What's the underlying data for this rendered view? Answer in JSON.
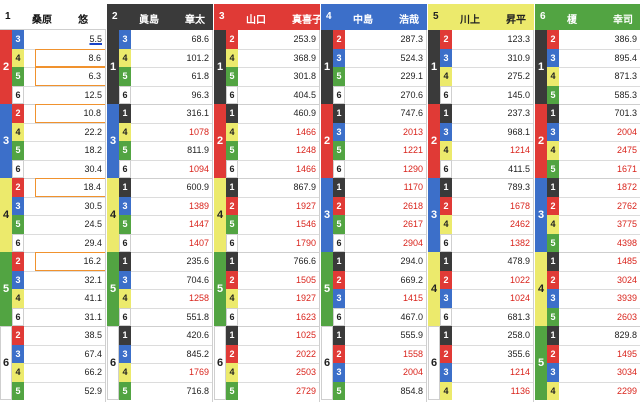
{
  "colors": {
    "c1": "#3a3a3a",
    "c2": "#e03a36",
    "c3": "#3c6fc9",
    "c4": "#ecea6c",
    "c5": "#52a442",
    "c6": "#ffffff"
  },
  "players": [
    {
      "num": "1",
      "last": "桑原",
      "first": "悠"
    },
    {
      "num": "2",
      "last": "眞島",
      "first": "章太"
    },
    {
      "num": "3",
      "last": "山口",
      "first": "真喜子"
    },
    {
      "num": "4",
      "last": "中島",
      "first": "浩哉"
    },
    {
      "num": "5",
      "last": "川上",
      "first": "昇平"
    },
    {
      "num": "6",
      "last": "榎",
      "first": "幸司"
    }
  ],
  "columns": [
    {
      "blocks": [
        {
          "second": "2",
          "rows": [
            {
              "third": "3",
              "odds": "5.5"
            },
            {
              "third": "4",
              "odds": "8.6"
            },
            {
              "third": "5",
              "odds": "6.3"
            },
            {
              "third": "6",
              "odds": "12.5"
            }
          ]
        },
        {
          "second": "3",
          "rows": [
            {
              "third": "2",
              "odds": "10.8"
            },
            {
              "third": "4",
              "odds": "22.2"
            },
            {
              "third": "5",
              "odds": "18.2"
            },
            {
              "third": "6",
              "odds": "30.4"
            }
          ]
        },
        {
          "second": "4",
          "rows": [
            {
              "third": "2",
              "odds": "18.4"
            },
            {
              "third": "3",
              "odds": "30.5"
            },
            {
              "third": "5",
              "odds": "24.5"
            },
            {
              "third": "6",
              "odds": "29.4"
            }
          ]
        },
        {
          "second": "5",
          "rows": [
            {
              "third": "2",
              "odds": "16.2"
            },
            {
              "third": "3",
              "odds": "32.1"
            },
            {
              "third": "4",
              "odds": "41.1"
            },
            {
              "third": "6",
              "odds": "31.1"
            }
          ]
        },
        {
          "second": "6",
          "rows": [
            {
              "third": "2",
              "odds": "38.5"
            },
            {
              "third": "3",
              "odds": "67.4"
            },
            {
              "third": "4",
              "odds": "66.2"
            },
            {
              "third": "5",
              "odds": "52.9"
            }
          ]
        }
      ]
    },
    {
      "blocks": [
        {
          "second": "1",
          "rows": [
            {
              "third": "3",
              "odds": "68.6"
            },
            {
              "third": "4",
              "odds": "101.2"
            },
            {
              "third": "5",
              "odds": "61.8"
            },
            {
              "third": "6",
              "odds": "96.3"
            }
          ]
        },
        {
          "second": "3",
          "rows": [
            {
              "third": "1",
              "odds": "316.1"
            },
            {
              "third": "4",
              "odds": "1078"
            },
            {
              "third": "5",
              "odds": "811.9"
            },
            {
              "third": "6",
              "odds": "1094"
            }
          ]
        },
        {
          "second": "4",
          "rows": [
            {
              "third": "1",
              "odds": "600.9"
            },
            {
              "third": "3",
              "odds": "1389"
            },
            {
              "third": "5",
              "odds": "1447"
            },
            {
              "third": "6",
              "odds": "1407"
            }
          ]
        },
        {
          "second": "5",
          "rows": [
            {
              "third": "1",
              "odds": "235.6"
            },
            {
              "third": "3",
              "odds": "704.6"
            },
            {
              "third": "4",
              "odds": "1258"
            },
            {
              "third": "6",
              "odds": "551.8"
            }
          ]
        },
        {
          "second": "6",
          "rows": [
            {
              "third": "1",
              "odds": "420.6"
            },
            {
              "third": "3",
              "odds": "845.2"
            },
            {
              "third": "4",
              "odds": "1769"
            },
            {
              "third": "5",
              "odds": "716.8"
            }
          ]
        }
      ]
    },
    {
      "blocks": [
        {
          "second": "1",
          "rows": [
            {
              "third": "2",
              "odds": "253.9"
            },
            {
              "third": "4",
              "odds": "368.9"
            },
            {
              "third": "5",
              "odds": "301.8"
            },
            {
              "third": "6",
              "odds": "404.5"
            }
          ]
        },
        {
          "second": "2",
          "rows": [
            {
              "third": "1",
              "odds": "460.9"
            },
            {
              "third": "4",
              "odds": "1466"
            },
            {
              "third": "5",
              "odds": "1248"
            },
            {
              "third": "6",
              "odds": "1466"
            }
          ]
        },
        {
          "second": "4",
          "rows": [
            {
              "third": "1",
              "odds": "867.9"
            },
            {
              "third": "2",
              "odds": "1927"
            },
            {
              "third": "5",
              "odds": "1546"
            },
            {
              "third": "6",
              "odds": "1790"
            }
          ]
        },
        {
          "second": "5",
          "rows": [
            {
              "third": "1",
              "odds": "766.6"
            },
            {
              "third": "2",
              "odds": "1505"
            },
            {
              "third": "4",
              "odds": "1927"
            },
            {
              "third": "6",
              "odds": "1623"
            }
          ]
        },
        {
          "second": "6",
          "rows": [
            {
              "third": "1",
              "odds": "1025"
            },
            {
              "third": "2",
              "odds": "2022"
            },
            {
              "third": "4",
              "odds": "2503"
            },
            {
              "third": "5",
              "odds": "2729"
            }
          ]
        }
      ]
    },
    {
      "blocks": [
        {
          "second": "1",
          "rows": [
            {
              "third": "2",
              "odds": "287.3"
            },
            {
              "third": "3",
              "odds": "524.3"
            },
            {
              "third": "5",
              "odds": "229.1"
            },
            {
              "third": "6",
              "odds": "270.6"
            }
          ]
        },
        {
          "second": "2",
          "rows": [
            {
              "third": "1",
              "odds": "747.6"
            },
            {
              "third": "3",
              "odds": "2013"
            },
            {
              "third": "5",
              "odds": "1221"
            },
            {
              "third": "6",
              "odds": "1290"
            }
          ]
        },
        {
          "second": "3",
          "rows": [
            {
              "third": "1",
              "odds": "1170"
            },
            {
              "third": "2",
              "odds": "2618"
            },
            {
              "third": "5",
              "odds": "2617"
            },
            {
              "third": "6",
              "odds": "2904"
            }
          ]
        },
        {
          "second": "5",
          "rows": [
            {
              "third": "1",
              "odds": "294.0"
            },
            {
              "third": "2",
              "odds": "669.2"
            },
            {
              "third": "3",
              "odds": "1415"
            },
            {
              "third": "6",
              "odds": "467.0"
            }
          ]
        },
        {
          "second": "6",
          "rows": [
            {
              "third": "1",
              "odds": "555.9"
            },
            {
              "third": "2",
              "odds": "1558"
            },
            {
              "third": "3",
              "odds": "2004"
            },
            {
              "third": "5",
              "odds": "854.8"
            }
          ]
        }
      ]
    },
    {
      "blocks": [
        {
          "second": "1",
          "rows": [
            {
              "third": "2",
              "odds": "123.3"
            },
            {
              "third": "3",
              "odds": "310.9"
            },
            {
              "third": "4",
              "odds": "275.2"
            },
            {
              "third": "6",
              "odds": "145.0"
            }
          ]
        },
        {
          "second": "2",
          "rows": [
            {
              "third": "1",
              "odds": "237.3"
            },
            {
              "third": "3",
              "odds": "968.1"
            },
            {
              "third": "4",
              "odds": "1214"
            },
            {
              "third": "6",
              "odds": "411.5"
            }
          ]
        },
        {
          "second": "3",
          "rows": [
            {
              "third": "1",
              "odds": "789.3"
            },
            {
              "third": "2",
              "odds": "1678"
            },
            {
              "third": "4",
              "odds": "2462"
            },
            {
              "third": "6",
              "odds": "1382"
            }
          ]
        },
        {
          "second": "4",
          "rows": [
            {
              "third": "1",
              "odds": "478.9"
            },
            {
              "third": "2",
              "odds": "1022"
            },
            {
              "third": "3",
              "odds": "1024"
            },
            {
              "third": "6",
              "odds": "681.3"
            }
          ]
        },
        {
          "second": "6",
          "rows": [
            {
              "third": "1",
              "odds": "258.0"
            },
            {
              "third": "2",
              "odds": "355.6"
            },
            {
              "third": "3",
              "odds": "1214"
            },
            {
              "third": "4",
              "odds": "1136"
            }
          ]
        }
      ]
    },
    {
      "blocks": [
        {
          "second": "1",
          "rows": [
            {
              "third": "2",
              "odds": "386.9"
            },
            {
              "third": "3",
              "odds": "895.4"
            },
            {
              "third": "4",
              "odds": "871.3"
            },
            {
              "third": "5",
              "odds": "585.3"
            }
          ]
        },
        {
          "second": "2",
          "rows": [
            {
              "third": "1",
              "odds": "701.3"
            },
            {
              "third": "3",
              "odds": "2004"
            },
            {
              "third": "4",
              "odds": "2475"
            },
            {
              "third": "5",
              "odds": "1671"
            }
          ]
        },
        {
          "second": "3",
          "rows": [
            {
              "third": "1",
              "odds": "1872"
            },
            {
              "third": "2",
              "odds": "2762"
            },
            {
              "third": "4",
              "odds": "3775"
            },
            {
              "third": "5",
              "odds": "4398"
            }
          ]
        },
        {
          "second": "4",
          "rows": [
            {
              "third": "1",
              "odds": "1485"
            },
            {
              "third": "2",
              "odds": "3024"
            },
            {
              "third": "3",
              "odds": "3939"
            },
            {
              "third": "5",
              "odds": "2603"
            }
          ]
        },
        {
          "second": "5",
          "rows": [
            {
              "third": "1",
              "odds": "829.8"
            },
            {
              "third": "2",
              "odds": "1495"
            },
            {
              "third": "3",
              "odds": "3034"
            },
            {
              "third": "4",
              "odds": "2299"
            }
          ]
        }
      ]
    }
  ]
}
